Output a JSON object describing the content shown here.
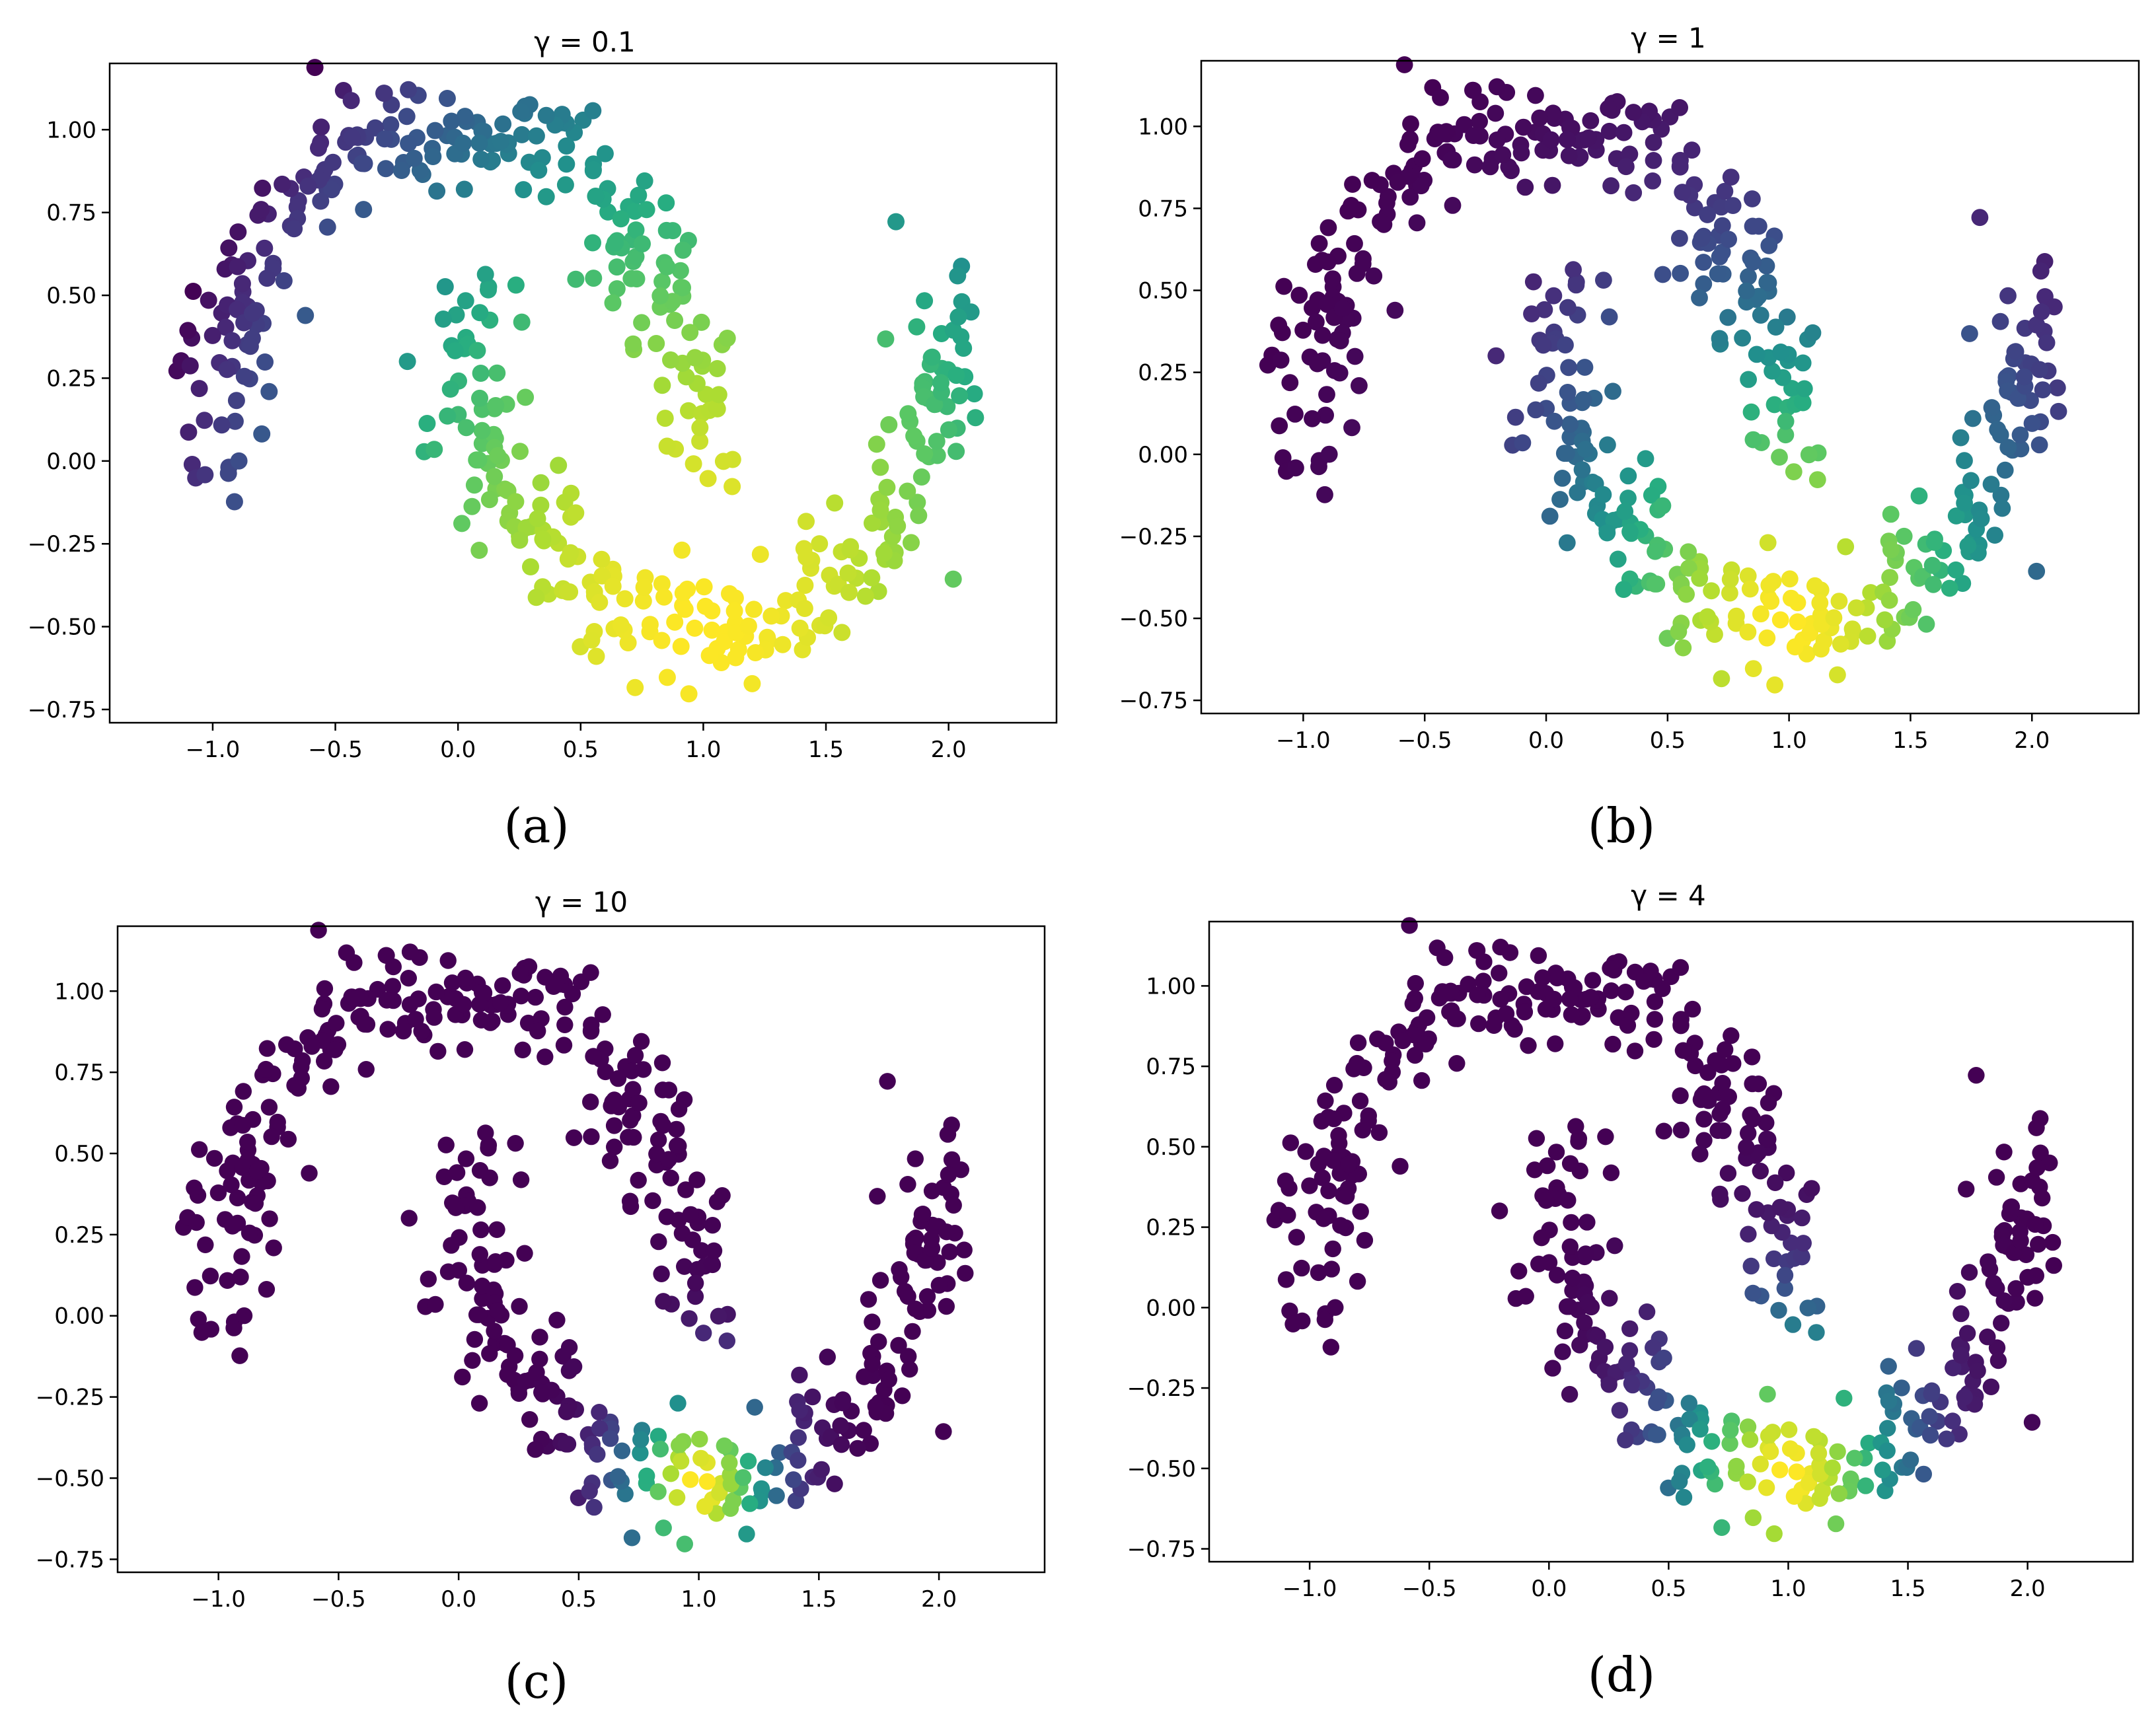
{
  "figure": {
    "colormap": "viridis",
    "colors": [
      "#440154",
      "#472c7a",
      "#3b518b",
      "#2c718e",
      "#21908d",
      "#27ad81",
      "#5cc863",
      "#aadc32",
      "#fde725"
    ],
    "x_ticks": [
      -1.0,
      -0.5,
      0.0,
      0.5,
      1.0,
      1.5,
      2.0
    ],
    "y_ticks": [
      -0.75,
      -0.5,
      -0.25,
      0.0,
      0.25,
      0.5,
      0.75,
      1.0
    ],
    "panel_labels": [
      "(a)",
      "(b)",
      "(c)",
      "(d)"
    ]
  },
  "chart_data": [
    {
      "type": "scatter",
      "title": "γ = 0.1",
      "label": "(a)",
      "gamma": 0.1,
      "xlim": [
        -1.42,
        2.44
      ],
      "ylim": [
        -0.79,
        1.2
      ],
      "xticklabels": [
        "−1.0",
        "−0.5",
        "0.0",
        "0.5",
        "1.0",
        "1.5",
        "2.0"
      ],
      "yticklabels": [
        "−0.75",
        "−0.50",
        "−0.25",
        "0.00",
        "0.25",
        "0.50",
        "0.75",
        "1.00"
      ],
      "data": "two interleaved half-moon clusters (~500 points); color = RBF similarity to the point near (1.0, -0.5)"
    },
    {
      "type": "scatter",
      "title": "γ = 1",
      "label": "(b)",
      "gamma": 1,
      "xlim": [
        -1.42,
        2.44
      ],
      "ylim": [
        -0.79,
        1.2
      ],
      "xticklabels": [
        "−1.0",
        "−0.5",
        "0.0",
        "0.5",
        "1.0",
        "1.5",
        "2.0"
      ],
      "yticklabels": [
        "−0.75",
        "−0.50",
        "−0.25",
        "0.00",
        "0.25",
        "0.50",
        "0.75",
        "1.00"
      ],
      "data": "two interleaved half-moon clusters (~500 points); color = RBF similarity to the point near (1.0, -0.5)"
    },
    {
      "type": "scatter",
      "title": "γ = 10",
      "label": "(c)",
      "gamma": 10,
      "xlim": [
        -1.42,
        2.44
      ],
      "ylim": [
        -0.79,
        1.2
      ],
      "xticklabels": [
        "−1.0",
        "−0.5",
        "0.0",
        "0.5",
        "1.0",
        "1.5",
        "2.0"
      ],
      "yticklabels": [
        "−0.75",
        "−0.50",
        "−0.25",
        "0.00",
        "0.25",
        "0.50",
        "0.75",
        "1.00"
      ],
      "data": "two interleaved half-moon clusters (~500 points); color = RBF similarity to the point near (1.0, -0.5)"
    },
    {
      "type": "scatter",
      "title": "γ = 4",
      "label": "(d)",
      "gamma": 4,
      "xlim": [
        -1.42,
        2.44
      ],
      "ylim": [
        -0.79,
        1.2
      ],
      "xticklabels": [
        "−1.0",
        "−0.5",
        "0.0",
        "0.5",
        "1.0",
        "1.5",
        "2.0"
      ],
      "yticklabels": [
        "−0.75",
        "−0.50",
        "−0.25",
        "0.00",
        "0.25",
        "0.50",
        "0.75",
        "1.00"
      ],
      "data": "two interleaved half-moon clusters (~500 points); color = RBF similarity to the point near (1.0, -0.5)"
    }
  ]
}
